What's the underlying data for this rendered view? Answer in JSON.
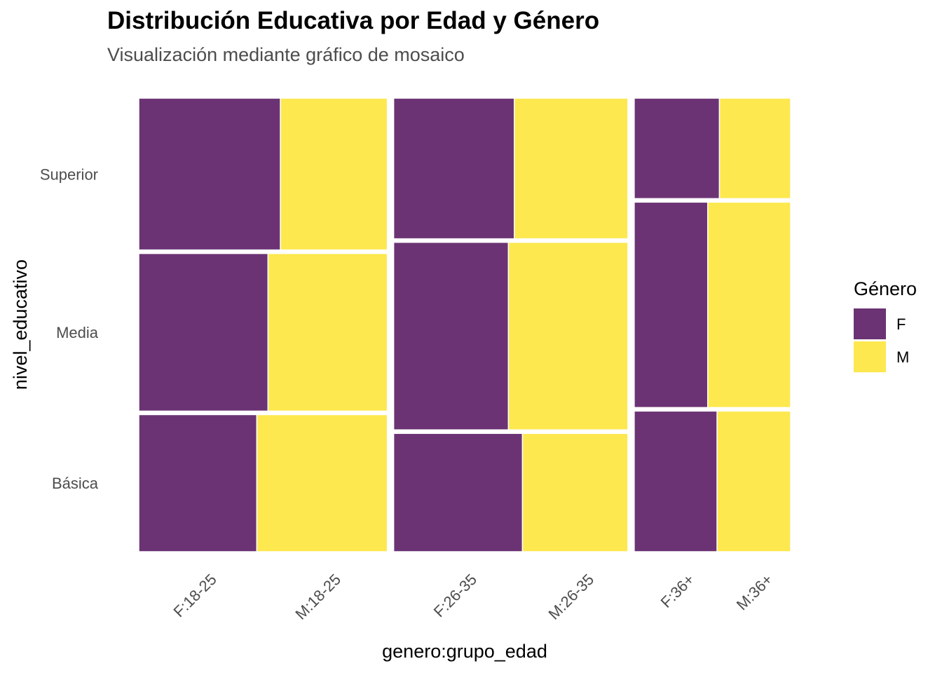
{
  "chart_data": {
    "type": "mosaic",
    "title": "Distribución Educativa por Edad y Género",
    "subtitle": "Visualización mediante gráfico de mosaico",
    "xlabel": "genero:grupo_edad",
    "ylabel": "nivel_educativo",
    "grid": false,
    "legend_position": "right",
    "legend": {
      "title": "Género",
      "entries": [
        {
          "key": "F",
          "label": "F"
        },
        {
          "key": "M",
          "label": "M"
        }
      ]
    },
    "colors": {
      "F": "#6b3374",
      "M": "#fde84f"
    },
    "y_levels": [
      "Básica",
      "Media",
      "Superior"
    ],
    "age_groups": [
      {
        "name": "18-25",
        "share": 0.383,
        "levels": [
          {
            "nivel": "Básica",
            "share": 0.307,
            "female_share": 0.475
          },
          {
            "nivel": "Media",
            "share": 0.353,
            "female_share": 0.52
          },
          {
            "nivel": "Superior",
            "share": 0.34,
            "female_share": 0.57
          }
        ]
      },
      {
        "name": "26-35",
        "share": 0.361,
        "levels": [
          {
            "nivel": "Básica",
            "share": 0.265,
            "female_share": 0.55
          },
          {
            "nivel": "Media",
            "share": 0.42,
            "female_share": 0.49
          },
          {
            "nivel": "Superior",
            "share": 0.315,
            "female_share": 0.515
          }
        ]
      },
      {
        "name": "36+",
        "share": 0.241,
        "levels": [
          {
            "nivel": "Básica",
            "share": 0.315,
            "female_share": 0.53
          },
          {
            "nivel": "Media",
            "share": 0.46,
            "female_share": 0.47
          },
          {
            "nivel": "Superior",
            "share": 0.225,
            "female_share": 0.545
          }
        ]
      }
    ],
    "x_tick_labels": [
      "F:18-25",
      "M:18-25",
      "F:26-35",
      "M:26-35",
      "F:36+",
      "M:36+"
    ],
    "y_tick_labels": [
      "Básica",
      "Media",
      "Superior"
    ]
  }
}
